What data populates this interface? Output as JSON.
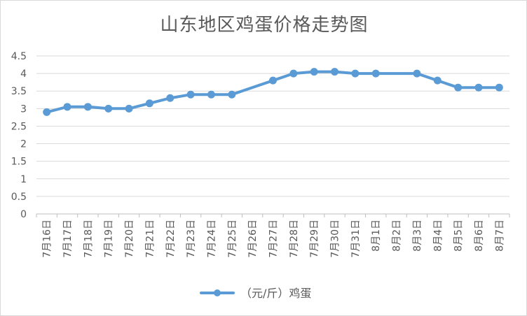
{
  "chart_data": {
    "type": "line",
    "title": "山东地区鸡蛋价格走势图",
    "xlabel": "",
    "ylabel": "",
    "categories": [
      "7月16日",
      "7月17日",
      "7月18日",
      "7月19日",
      "7月20日",
      "7月21日",
      "7月22日",
      "7月23日",
      "7月24日",
      "7月25日",
      "7月26日",
      "7月27日",
      "7月28日",
      "7月29日",
      "7月30日",
      "7月31日",
      "8月1日",
      "8月2日",
      "8月3日",
      "8月4日",
      "8月5日",
      "8月6日",
      "8月7日"
    ],
    "series": [
      {
        "name": "（元/斤）鸡蛋",
        "color": "#5b9bd5",
        "values": [
          2.9,
          3.05,
          3.05,
          3.0,
          3.0,
          3.15,
          3.3,
          3.4,
          3.4,
          3.4,
          null,
          3.8,
          4.0,
          4.05,
          4.05,
          4.0,
          4.0,
          null,
          4.0,
          3.8,
          3.6,
          3.6,
          3.6
        ]
      }
    ],
    "ylim": [
      0,
      4.5
    ],
    "yticks": [
      "0",
      "0.5",
      "1",
      "1.5",
      "2",
      "2.5",
      "3",
      "3.5",
      "4",
      "4.5"
    ],
    "grid": true,
    "legend_position": "bottom"
  }
}
